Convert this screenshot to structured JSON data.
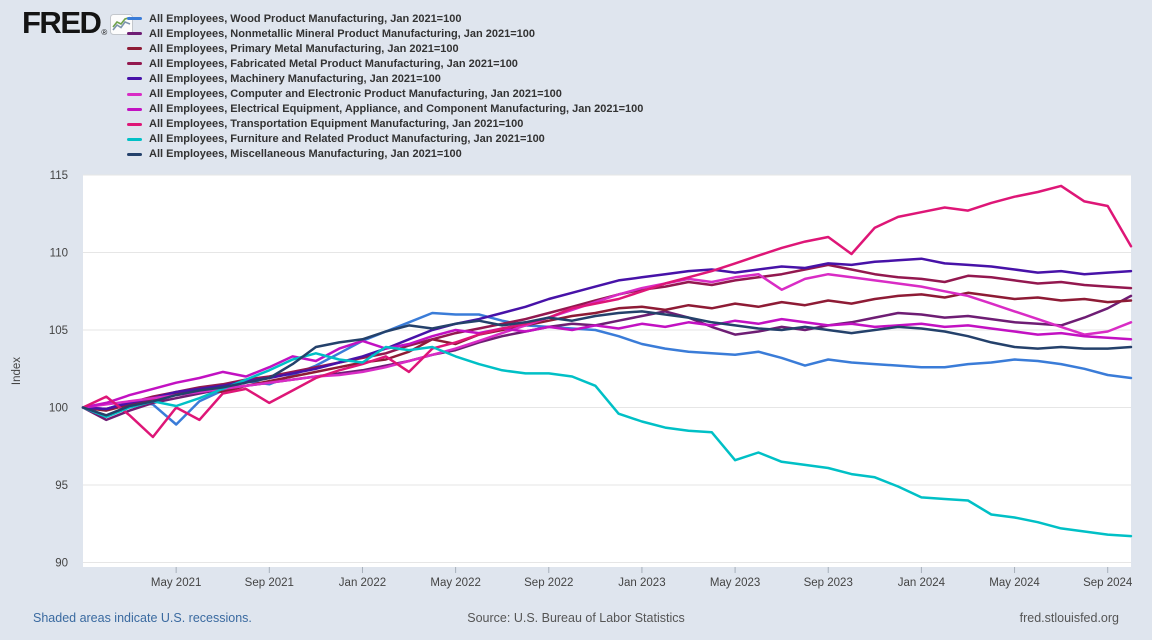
{
  "header": {
    "logo_text": "FRED",
    "logo_registered": "®"
  },
  "footer": {
    "recessions_note": "Shaded areas indicate U.S. recessions.",
    "source": "Source: U.S. Bureau of Labor Statistics",
    "site": "fred.stlouisfed.org"
  },
  "colors": {
    "page_background": "#dfe5ee",
    "plot_background": "#ffffff",
    "gridline": "#e6e6e6",
    "tick": "#a6afba",
    "axis_text": "#444444",
    "legend_text": "#333333",
    "footer_link": "#3a6aa0",
    "footer_text": "#555555"
  },
  "chart_data": {
    "type": "line",
    "title": "",
    "ylabel": "Index",
    "xlabel": "",
    "grid": "horizontal-only",
    "legend_position": "top-left",
    "ylim": [
      89.5,
      115
    ],
    "y_ticks": [
      90,
      95,
      100,
      105,
      110,
      115
    ],
    "x_months": [
      "Jan 2021",
      "Feb 2021",
      "Mar 2021",
      "Apr 2021",
      "May 2021",
      "Jun 2021",
      "Jul 2021",
      "Aug 2021",
      "Sep 2021",
      "Oct 2021",
      "Nov 2021",
      "Dec 2021",
      "Jan 2022",
      "Feb 2022",
      "Mar 2022",
      "Apr 2022",
      "May 2022",
      "Jun 2022",
      "Jul 2022",
      "Aug 2022",
      "Sep 2022",
      "Oct 2022",
      "Nov 2022",
      "Dec 2022",
      "Jan 2023",
      "Feb 2023",
      "Mar 2023",
      "Apr 2023",
      "May 2023",
      "Jun 2023",
      "Jul 2023",
      "Aug 2023",
      "Sep 2023",
      "Oct 2023",
      "Nov 2023",
      "Dec 2023",
      "Jan 2024",
      "Feb 2024",
      "Mar 2024",
      "Apr 2024",
      "May 2024",
      "Jun 2024",
      "Jul 2024",
      "Aug 2024",
      "Sep 2024",
      "Oct 2024"
    ],
    "x_tick_labels": [
      "May 2021",
      "Sep 2021",
      "Jan 2022",
      "May 2022",
      "Sep 2022",
      "Jan 2023",
      "May 2023",
      "Sep 2023",
      "Jan 2024",
      "May 2024",
      "Sep 2024"
    ],
    "x_tick_month_index": [
      4,
      8,
      12,
      16,
      20,
      24,
      28,
      32,
      36,
      40,
      44
    ],
    "series": [
      {
        "name": "All Employees, Wood Product Manufacturing, Jan 2021=100",
        "color": "#3a7cd8",
        "values": [
          100,
          99.9,
          100.4,
          100.2,
          98.9,
          100.4,
          101.1,
          101.7,
          101.5,
          102.1,
          102.7,
          103.5,
          104.3,
          104.9,
          105.5,
          106.1,
          106.0,
          106.0,
          105.6,
          105.3,
          105.2,
          105.1,
          105.0,
          104.6,
          104.1,
          103.8,
          103.6,
          103.5,
          103.4,
          103.6,
          103.2,
          102.7,
          103.1,
          102.9,
          102.8,
          102.7,
          102.6,
          102.6,
          102.8,
          102.9,
          103.1,
          103.0,
          102.8,
          102.5,
          102.1,
          101.9
        ]
      },
      {
        "name": "All Employees, Nonmetallic Mineral Product Manufacturing, Jan 2021=100",
        "color": "#6e1d74",
        "values": [
          100,
          99.2,
          99.8,
          100.3,
          100.6,
          100.9,
          101.2,
          101.4,
          101.6,
          101.8,
          102.0,
          102.2,
          102.4,
          102.7,
          103.0,
          103.4,
          103.7,
          104.2,
          104.6,
          104.9,
          105.2,
          105.4,
          105.3,
          105.6,
          105.9,
          106.2,
          105.8,
          105.2,
          104.7,
          104.9,
          105.2,
          105.0,
          105.3,
          105.5,
          105.8,
          106.1,
          106.0,
          105.8,
          105.9,
          105.7,
          105.5,
          105.4,
          105.3,
          105.8,
          106.4,
          107.2
        ]
      },
      {
        "name": "All Employees, Primary Metal Manufacturing, Jan 2021=100",
        "color": "#8e1b35",
        "values": [
          100,
          99.8,
          100.2,
          100.5,
          100.9,
          101.2,
          101.0,
          101.4,
          101.7,
          102.0,
          102.3,
          102.6,
          102.9,
          103.1,
          103.6,
          104.4,
          104.1,
          104.7,
          105.0,
          105.3,
          105.6,
          105.9,
          106.1,
          106.4,
          106.5,
          106.3,
          106.6,
          106.4,
          106.7,
          106.5,
          106.8,
          106.6,
          106.9,
          106.7,
          107.0,
          107.2,
          107.3,
          107.1,
          107.4,
          107.2,
          107.0,
          107.1,
          106.9,
          107.0,
          106.8,
          106.9
        ]
      },
      {
        "name": "All Employees, Fabricated Metal Product Manufacturing, Jan 2021=100",
        "color": "#93184f",
        "values": [
          100,
          99.9,
          100.3,
          100.7,
          101.0,
          101.3,
          101.5,
          101.8,
          102.0,
          102.3,
          102.6,
          102.9,
          103.2,
          103.5,
          104.0,
          104.4,
          104.8,
          105.1,
          105.4,
          105.7,
          106.1,
          106.5,
          106.9,
          107.3,
          107.6,
          107.8,
          108.1,
          107.9,
          108.2,
          108.4,
          108.6,
          108.9,
          109.2,
          108.9,
          108.6,
          108.4,
          108.3,
          108.1,
          108.5,
          108.4,
          108.2,
          108.0,
          108.1,
          107.9,
          107.8,
          107.7
        ]
      },
      {
        "name": "All Employees, Machinery Manufacturing, Jan 2021=100",
        "color": "#4712a8",
        "values": [
          100,
          99.9,
          100.3,
          100.6,
          101.0,
          101.2,
          101.4,
          101.7,
          101.9,
          102.2,
          102.5,
          102.9,
          103.3,
          103.8,
          104.4,
          105.0,
          105.4,
          105.7,
          106.1,
          106.5,
          107.0,
          107.4,
          107.8,
          108.2,
          108.4,
          108.6,
          108.8,
          108.9,
          108.7,
          108.9,
          109.1,
          109.0,
          109.3,
          109.2,
          109.4,
          109.5,
          109.6,
          109.3,
          109.2,
          109.1,
          108.9,
          108.7,
          108.8,
          108.6,
          108.7,
          108.8
        ]
      },
      {
        "name": "All Employees, Computer and Electronic Product Manufacturing, Jan 2021=100",
        "color": "#d92cc5",
        "values": [
          100,
          100.2,
          100.4,
          100.6,
          100.8,
          101.0,
          101.2,
          101.4,
          101.6,
          101.8,
          102.0,
          102.1,
          102.3,
          102.6,
          103.0,
          103.4,
          103.8,
          104.3,
          104.8,
          105.3,
          105.8,
          106.3,
          106.8,
          107.3,
          107.7,
          108.0,
          108.3,
          108.1,
          108.4,
          108.6,
          107.6,
          108.3,
          108.6,
          108.4,
          108.2,
          108.0,
          107.8,
          107.5,
          107.2,
          106.7,
          106.2,
          105.7,
          105.2,
          104.7,
          104.9,
          105.5
        ]
      },
      {
        "name": "All Employees, Electrical Equipment, Appliance, and Component Manufacturing, Jan 2021=100",
        "color": "#c211c2",
        "values": [
          100,
          100.3,
          100.8,
          101.2,
          101.6,
          101.9,
          102.3,
          102.0,
          102.6,
          103.3,
          103.0,
          103.8,
          104.3,
          103.8,
          104.1,
          104.6,
          105.0,
          104.8,
          105.1,
          104.9,
          105.2,
          105.0,
          105.3,
          105.1,
          105.4,
          105.2,
          105.5,
          105.3,
          105.6,
          105.4,
          105.7,
          105.5,
          105.3,
          105.4,
          105.2,
          105.3,
          105.4,
          105.2,
          105.3,
          105.1,
          104.9,
          104.7,
          104.8,
          104.6,
          104.5,
          104.4
        ]
      },
      {
        "name": "All Employees, Transportation Equipment Manufacturing, Jan 2021=100",
        "color": "#de1677",
        "values": [
          100,
          100.7,
          99.5,
          98.1,
          100.0,
          99.2,
          100.9,
          101.2,
          100.3,
          101.1,
          101.9,
          102.4,
          102.8,
          103.3,
          102.3,
          103.8,
          104.2,
          104.7,
          105.1,
          105.4,
          105.8,
          106.4,
          106.7,
          107.0,
          107.5,
          108.0,
          108.4,
          108.8,
          109.3,
          109.8,
          110.3,
          110.7,
          111.0,
          109.9,
          111.6,
          112.3,
          112.6,
          112.9,
          112.7,
          113.2,
          113.6,
          113.9,
          114.3,
          113.3,
          113.0,
          110.4
        ]
      },
      {
        "name": "All Employees, Furniture and Related Product Manufacturing, Jan 2021=100",
        "color": "#00c0c6",
        "values": [
          100,
          99.4,
          100.0,
          100.4,
          100.1,
          100.6,
          101.2,
          101.8,
          102.4,
          103.1,
          103.5,
          103.1,
          102.9,
          103.9,
          103.7,
          103.9,
          103.3,
          102.8,
          102.4,
          102.2,
          102.2,
          102.0,
          101.4,
          99.6,
          99.1,
          98.7,
          98.5,
          98.4,
          96.6,
          97.1,
          96.5,
          96.3,
          96.1,
          95.7,
          95.5,
          94.9,
          94.2,
          94.1,
          94.0,
          93.1,
          92.9,
          92.6,
          92.2,
          92.0,
          91.8,
          91.7
        ]
      },
      {
        "name": "All Employees, Miscellaneous Manufacturing, Jan 2021=100",
        "color": "#24416b",
        "values": [
          100,
          99.5,
          100.1,
          100.4,
          100.8,
          101.1,
          101.3,
          101.6,
          101.9,
          102.8,
          103.9,
          104.2,
          104.4,
          104.9,
          105.3,
          105.1,
          105.4,
          105.6,
          105.3,
          105.5,
          105.8,
          105.6,
          105.9,
          106.1,
          106.2,
          106.0,
          105.8,
          105.5,
          105.3,
          105.1,
          105.0,
          105.2,
          105.0,
          104.8,
          105.0,
          105.2,
          105.1,
          104.9,
          104.6,
          104.2,
          103.9,
          103.8,
          103.9,
          103.8,
          103.8,
          103.9
        ]
      }
    ]
  }
}
